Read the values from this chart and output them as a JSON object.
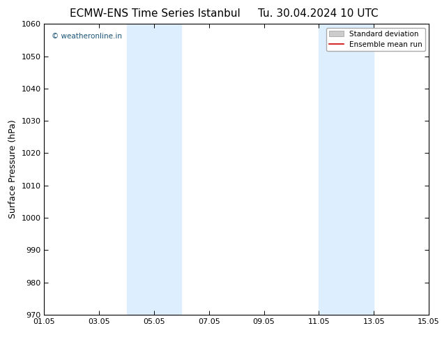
{
  "title": "ECMW-ENS Time Series Istanbul",
  "title2": "Tu. 30.04.2024 10 UTC",
  "ylabel": "Surface Pressure (hPa)",
  "ylim": [
    970,
    1060
  ],
  "yticks": [
    970,
    980,
    990,
    1000,
    1010,
    1020,
    1030,
    1040,
    1050,
    1060
  ],
  "x_start_days": 0,
  "x_end_days": 14,
  "xtick_labels": [
    "01.05",
    "03.05",
    "05.05",
    "07.05",
    "09.05",
    "11.05",
    "13.05",
    "15.05"
  ],
  "xtick_positions_days": [
    0,
    2,
    4,
    6,
    8,
    10,
    12,
    14
  ],
  "shaded_regions": [
    {
      "x0_days": 3,
      "x1_days": 5
    },
    {
      "x0_days": 10,
      "x1_days": 12
    }
  ],
  "shade_color": "#ddeeff",
  "watermark_text": "© weatheronline.in",
  "watermark_color": "#1a5276",
  "legend_std_label": "Standard deviation",
  "legend_mean_label": "Ensemble mean run",
  "legend_std_color": "#cccccc",
  "legend_mean_color": "#cc0000",
  "background_color": "#ffffff",
  "title_fontsize": 11,
  "axis_fontsize": 9,
  "tick_fontsize": 8
}
